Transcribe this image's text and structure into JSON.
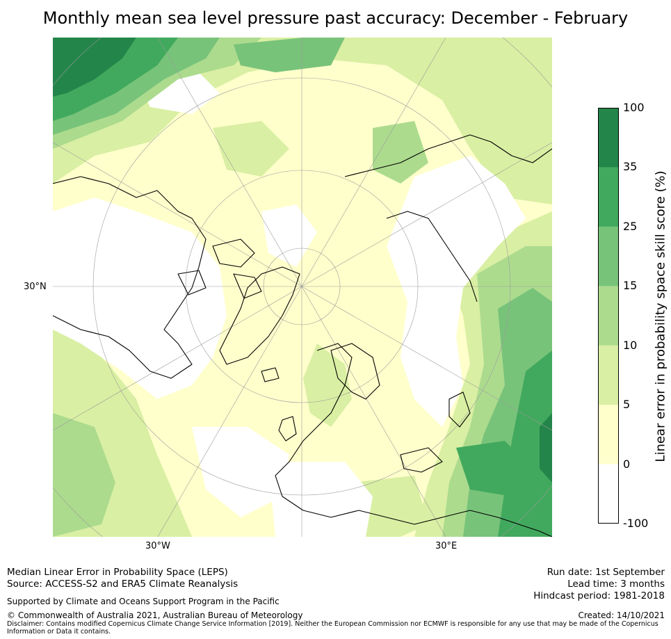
{
  "title": "Monthly mean sea level pressure past accuracy: December - February",
  "map": {
    "projection": "north-polar-stereographic",
    "lat_label": "30°N",
    "lon_labels": [
      "30°W",
      "30°E"
    ]
  },
  "colorbar": {
    "title": "Linear error in probability space skill score (%)",
    "ticks": [
      "100",
      "35",
      "25",
      "15",
      "10",
      "5",
      "0",
      "-100"
    ],
    "colors": [
      "#23854a",
      "#41a95d",
      "#78c37a",
      "#acdb8e",
      "#d9efa3",
      "#ffffcc",
      "#ffffff"
    ]
  },
  "footer": {
    "left_line1": "Median Linear Error in Probability Space (LEPS)",
    "left_line2": "Source: ACCESS-S2 and ERA5 Climate Reanalysis",
    "support": "Supported by Climate and Oceans Support Program in the Pacific",
    "copyright": "© Commonwealth of Australia 2021, Australian Bureau of Meteorology",
    "disclaimer_line1": "Disclaimer: Contains modified Copernicus Climate Change Service Information [2019]. Neither the European Commission nor ECMWF is responsible for any use that may be made of the Copernicus",
    "disclaimer_line2": "Information or Data it contains.",
    "run_date": "Run date: 1st September",
    "lead_time": "Lead time: 3 months",
    "hindcast": "Hindcast period: 1981-2018",
    "created": "Created: 14/10/2021"
  }
}
